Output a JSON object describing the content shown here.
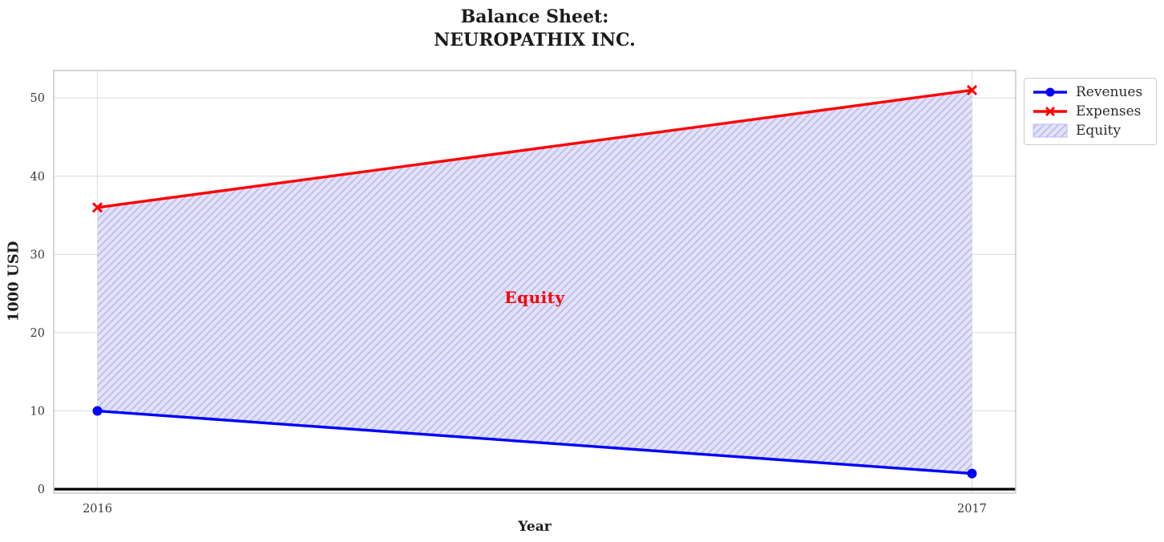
{
  "title": {
    "line1": "Balance Sheet:",
    "line2": "NEUROPATHIX INC."
  },
  "chart_data": {
    "type": "line",
    "title": "Balance Sheet:\nNEUROPATHIX INC.",
    "xlabel": "Year",
    "ylabel": "1000 USD",
    "x": [
      2016,
      2017
    ],
    "x_tick_labels": [
      "2016",
      "2017"
    ],
    "y_ticks": [
      0,
      10,
      20,
      30,
      40,
      50
    ],
    "xlim": [
      2015.95,
      2017.05
    ],
    "ylim": [
      -0.5,
      53.5
    ],
    "grid": true,
    "grid_color": "#d9d9d9",
    "frame_color": "#cbcbcb",
    "series": [
      {
        "name": "Revenues",
        "values": [
          10,
          2
        ],
        "color": "#0000ff",
        "marker": "circle"
      },
      {
        "name": "Expenses",
        "values": [
          36,
          51
        ],
        "color": "#ff0000",
        "marker": "x"
      }
    ],
    "area": {
      "name": "Equity",
      "between": [
        "Revenues",
        "Expenses"
      ],
      "hatch": "//",
      "fill_color": "#e2e2f8",
      "hatch_color": "#b9b9ef",
      "label": "Equity",
      "label_color": "#ff0000",
      "label_pos": {
        "x": 2016.5,
        "y": 24.5
      }
    },
    "zero_line": {
      "y": 0,
      "color": "#000000"
    },
    "legend_position": "upper-right-outside"
  }
}
